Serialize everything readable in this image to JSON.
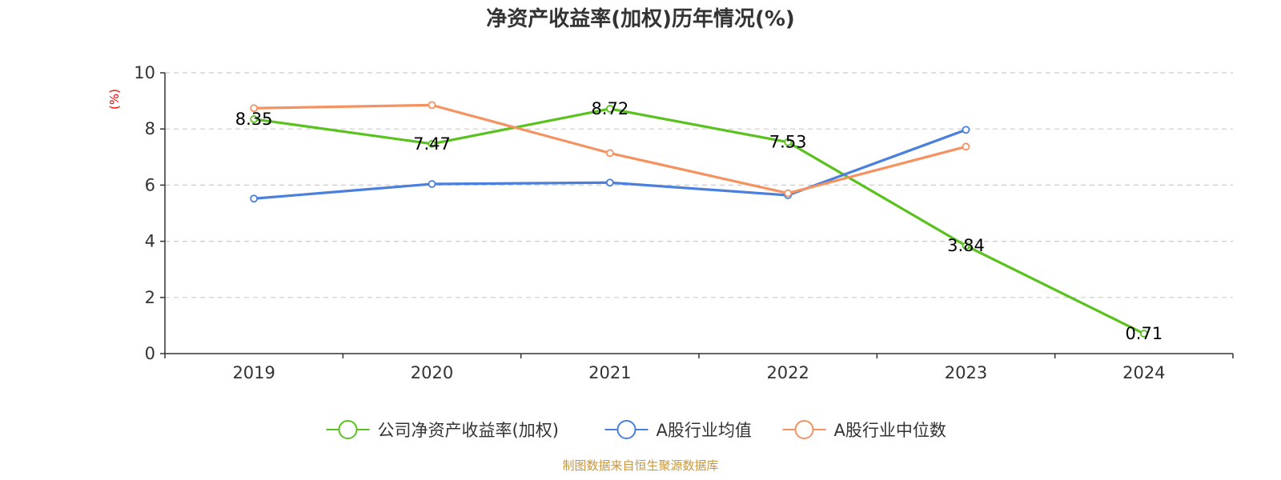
{
  "chart_data": {
    "type": "line",
    "title": "净资产收益率(加权)历年情况(%)",
    "ylabel": "(%)",
    "xlabel": "",
    "categories": [
      "2019",
      "2020",
      "2021",
      "2022",
      "2023",
      "2024"
    ],
    "ylim": [
      0,
      10
    ],
    "yticks": [
      0,
      2,
      4,
      6,
      8,
      10
    ],
    "grid": true,
    "legend_position": "bottom",
    "series": [
      {
        "name": "公司净资产收益率(加权)",
        "color": "#5ac21e",
        "values": [
          8.35,
          7.47,
          8.72,
          7.53,
          3.84,
          0.71
        ],
        "labels": [
          "8.35",
          "7.47",
          "8.72",
          "7.53",
          "3.84",
          "0.71"
        ]
      },
      {
        "name": "A股行业均值",
        "color": "#4a7fdc",
        "values": [
          5.52,
          6.04,
          6.09,
          5.64,
          7.97,
          null
        ]
      },
      {
        "name": "A股行业中位数",
        "color": "#f59262",
        "values": [
          8.74,
          8.85,
          7.14,
          5.71,
          7.37,
          null
        ]
      }
    ],
    "source": "制图数据来自恒生聚源数据库"
  }
}
